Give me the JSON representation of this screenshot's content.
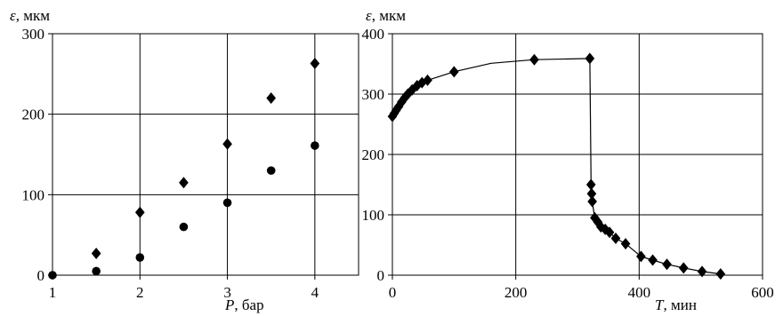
{
  "chart_data": [
    {
      "type": "scatter",
      "title": "",
      "xlabel": {
        "symbol": "P",
        "unit": ", бар"
      },
      "ylabel": {
        "symbol": "ε",
        "unit": ", мкм"
      },
      "xlim": [
        1,
        4.5
      ],
      "ylim": [
        0,
        300
      ],
      "xticks": [
        1,
        2,
        3,
        4
      ],
      "yticks": [
        0,
        100,
        200,
        300
      ],
      "grid": true,
      "series": [
        {
          "marker": "diamond",
          "x": [
            1.5,
            2.0,
            2.5,
            3.0,
            3.5,
            4.0
          ],
          "y": [
            27,
            78,
            115,
            163,
            220,
            263
          ]
        },
        {
          "marker": "circle",
          "x": [
            1.0,
            1.5,
            2.0,
            2.5,
            3.0,
            3.5,
            4.0
          ],
          "y": [
            0,
            5,
            22,
            60,
            90,
            130,
            161
          ]
        }
      ]
    },
    {
      "type": "line",
      "title": "",
      "xlabel": {
        "symbol": "T",
        "unit": ", мин"
      },
      "ylabel": {
        "symbol": "ε",
        "unit": ", мкм"
      },
      "xlim": [
        0,
        600
      ],
      "ylim": [
        0,
        400
      ],
      "xticks": [
        0,
        200,
        400,
        600
      ],
      "yticks": [
        0,
        100,
        200,
        300,
        400
      ],
      "grid": true,
      "series": [
        {
          "marker": "diamond",
          "line": true,
          "x": [
            0,
            3,
            6,
            10,
            15,
            20,
            25,
            32,
            40,
            48,
            57,
            100,
            160,
            230,
            320,
            322,
            323,
            324,
            328,
            333,
            338,
            345,
            352,
            362,
            378,
            403,
            422,
            445,
            472,
            502,
            532
          ],
          "y": [
            263,
            268,
            273,
            279,
            287,
            294,
            300,
            307,
            314,
            319,
            323,
            337,
            351,
            357,
            359,
            150,
            135,
            122,
            95,
            88,
            80,
            76,
            71,
            61,
            52,
            31,
            25,
            18,
            12,
            6,
            2
          ]
        }
      ],
      "markers_omitted_at_x": [
        160
      ]
    }
  ]
}
